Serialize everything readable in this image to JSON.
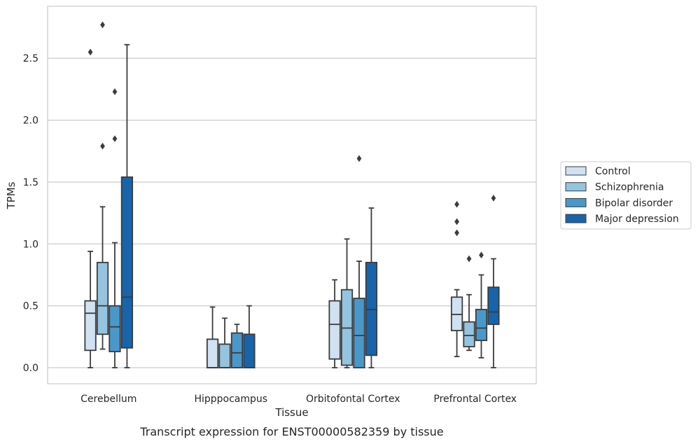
{
  "caption": "Transcript expression for ENST00000582359 by tissue",
  "chart_data": {
    "type": "box",
    "xlabel": "Tissue",
    "ylabel": "TPMs",
    "ylim": [
      -0.13,
      2.92
    ],
    "yticks": [
      0.0,
      0.5,
      1.0,
      1.5,
      2.0,
      2.5
    ],
    "ytick_labels": [
      "0.0",
      "0.5",
      "1.0",
      "1.5",
      "2.0",
      "2.5"
    ],
    "grid": "horizontal",
    "legend_position": "right",
    "categories": [
      "Cerebellum",
      "Hipppocampus",
      "Orbitofontal Cortex",
      "Prefrontal Cortex"
    ],
    "series": [
      {
        "name": "Control",
        "color": "#d0e1f2",
        "boxes": [
          {
            "whislo": 0.0,
            "q1": 0.14,
            "med": 0.44,
            "q3": 0.54,
            "whishi": 0.94,
            "fliers": [
              2.55
            ]
          },
          {
            "whislo": 0.0,
            "q1": 0.0,
            "med": 0.0,
            "q3": 0.23,
            "whishi": 0.49,
            "fliers": []
          },
          {
            "whislo": 0.0,
            "q1": 0.07,
            "med": 0.35,
            "q3": 0.54,
            "whishi": 0.71,
            "fliers": []
          },
          {
            "whislo": 0.09,
            "q1": 0.3,
            "med": 0.43,
            "q3": 0.57,
            "whishi": 0.63,
            "fliers": [
              1.09,
              1.18,
              1.32
            ]
          }
        ]
      },
      {
        "name": "Schizophrenia",
        "color": "#94c4df",
        "boxes": [
          {
            "whislo": 0.15,
            "q1": 0.27,
            "med": 0.5,
            "q3": 0.85,
            "whishi": 1.3,
            "fliers": [
              1.79,
              2.77
            ]
          },
          {
            "whislo": 0.0,
            "q1": 0.0,
            "med": 0.0,
            "q3": 0.19,
            "whishi": 0.4,
            "fliers": []
          },
          {
            "whislo": 0.0,
            "q1": 0.02,
            "med": 0.32,
            "q3": 0.63,
            "whishi": 1.04,
            "fliers": []
          },
          {
            "whislo": 0.14,
            "q1": 0.17,
            "med": 0.26,
            "q3": 0.37,
            "whishi": 0.59,
            "fliers": [
              0.88
            ]
          }
        ]
      },
      {
        "name": "Bipolar disorder",
        "color": "#4a98c9",
        "boxes": [
          {
            "whislo": 0.0,
            "q1": 0.13,
            "med": 0.33,
            "q3": 0.5,
            "whishi": 1.01,
            "fliers": [
              1.85,
              2.23
            ]
          },
          {
            "whislo": 0.0,
            "q1": 0.0,
            "med": 0.12,
            "q3": 0.28,
            "whishi": 0.35,
            "fliers": []
          },
          {
            "whislo": 0.0,
            "q1": 0.0,
            "med": 0.26,
            "q3": 0.56,
            "whishi": 0.86,
            "fliers": [
              1.69
            ]
          },
          {
            "whislo": 0.08,
            "q1": 0.22,
            "med": 0.32,
            "q3": 0.47,
            "whishi": 0.75,
            "fliers": [
              0.91
            ]
          }
        ]
      },
      {
        "name": "Major depression",
        "color": "#1764ab",
        "boxes": [
          {
            "whislo": 0.0,
            "q1": 0.16,
            "med": 0.57,
            "q3": 1.54,
            "whishi": 2.61,
            "fliers": []
          },
          {
            "whislo": 0.0,
            "q1": 0.0,
            "med": 0.0,
            "q3": 0.27,
            "whishi": 0.5,
            "fliers": []
          },
          {
            "whislo": 0.0,
            "q1": 0.1,
            "med": 0.47,
            "q3": 0.85,
            "whishi": 1.29,
            "fliers": []
          },
          {
            "whislo": 0.0,
            "q1": 0.35,
            "med": 0.45,
            "q3": 0.65,
            "whishi": 0.88,
            "fliers": [
              1.37
            ]
          }
        ]
      }
    ]
  }
}
